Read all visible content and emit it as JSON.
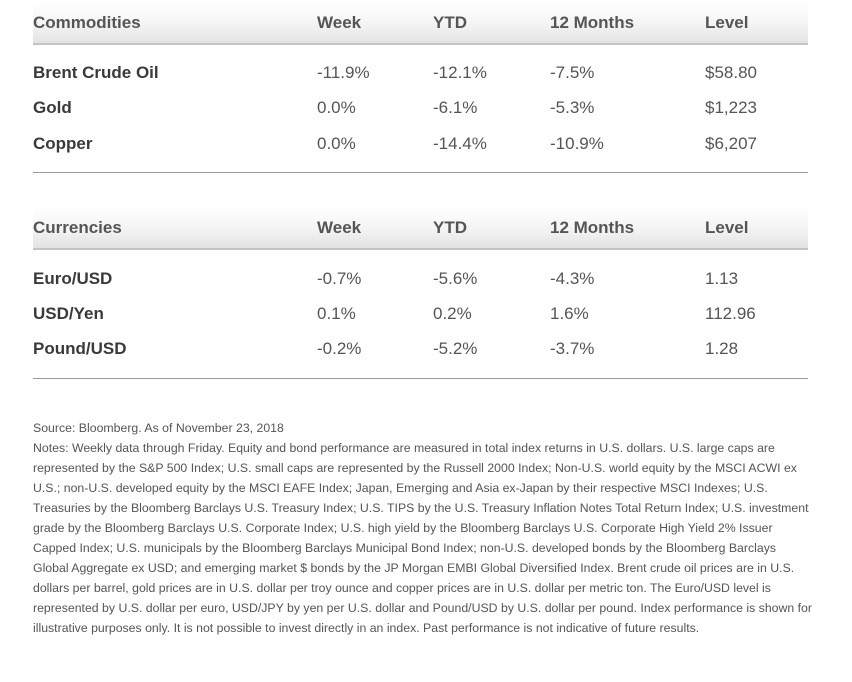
{
  "commodities": {
    "headers": [
      "Commodities",
      "Week",
      "YTD",
      "12 Months",
      "Level"
    ],
    "rows": [
      {
        "name": "Brent Crude Oil",
        "week": "-11.9%",
        "ytd": "-12.1%",
        "m12": "-7.5%",
        "level": "$58.80"
      },
      {
        "name": "Gold",
        "week": "0.0%",
        "ytd": "-6.1%",
        "m12": "-5.3%",
        "level": "$1,223"
      },
      {
        "name": "Copper",
        "week": "0.0%",
        "ytd": "-14.4%",
        "m12": "-10.9%",
        "level": "$6,207"
      }
    ]
  },
  "currencies": {
    "headers": [
      "Currencies",
      "Week",
      "YTD",
      "12 Months",
      "Level"
    ],
    "rows": [
      {
        "name": "Euro/USD",
        "week": "-0.7%",
        "ytd": "-5.6%",
        "m12": "-4.3%",
        "level": "1.13"
      },
      {
        "name": "USD/Yen",
        "week": "0.1%",
        "ytd": "0.2%",
        "m12": "1.6%",
        "level": "112.96"
      },
      {
        "name": "Pound/USD",
        "week": "-0.2%",
        "ytd": "-5.2%",
        "m12": "-3.7%",
        "level": "1.28"
      }
    ]
  },
  "notes": {
    "source": "Source: Bloomberg. As of November 23, 2018",
    "text": "Notes: Weekly data through Friday. Equity and bond performance are measured in total index returns in U.S. dollars. U.S. large caps are represented by the S&P 500 Index; U.S. small caps are represented by the Russell 2000 Index; Non-U.S. world equity by the MSCI ACWI ex U.S.; non-U.S. developed equity by the MSCI EAFE Index; Japan, Emerging and Asia ex-Japan by their respective MSCI Indexes; U.S. Treasuries by the Bloomberg Barclays U.S. Treasury Index; U.S. TIPS by the U.S. Treasury Inflation Notes Total Return Index; U.S. investment grade by the Bloomberg Barclays U.S. Corporate Index; U.S. high yield by the Bloomberg Barclays U.S. Corporate High Yield 2% Issuer Capped Index; U.S. municipals by the Bloomberg Barclays Municipal Bond Index; non-U.S. developed bonds by the Bloomberg Barclays Global Aggregate ex USD; and emerging market $ bonds by the JP Morgan EMBI Global Diversified Index. Brent crude oil prices are in U.S. dollars per barrel, gold prices are in U.S. dollar per troy ounce and copper prices are in U.S. dollar per metric ton. The Euro/USD level is represented by U.S. dollar per euro, USD/JPY by yen per U.S. dollar and Pound/USD by U.S. dollar per pound. Index performance is shown for illustrative purposes only. It is not possible to invest directly in an index. Past performance is not indicative of future results."
  }
}
